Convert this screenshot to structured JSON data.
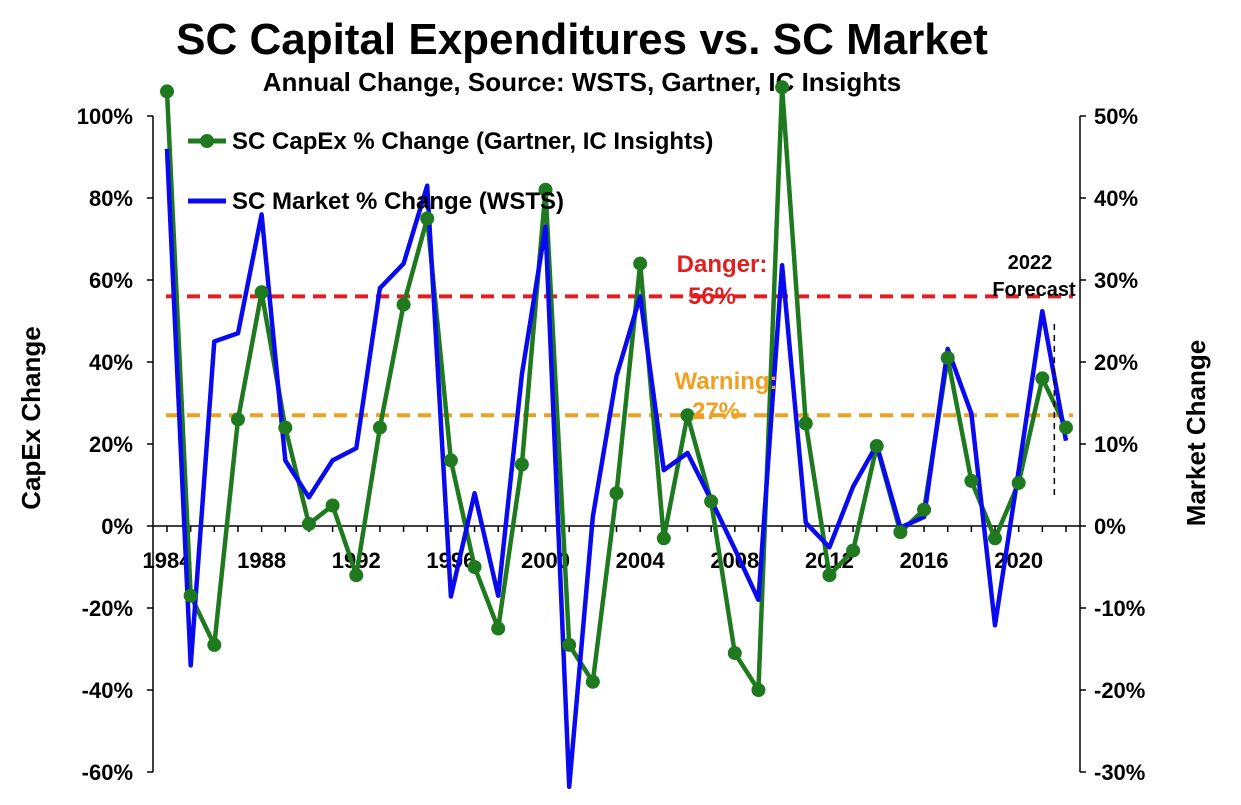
{
  "chart_data": {
    "type": "line",
    "title": "SC Capital Expenditures vs. SC Market",
    "subtitle": "Annual Change, Source: WSTS, Gartner, IC Insights",
    "ylabel": "CapEx Change",
    "y2label": "Market Change",
    "ylim": [
      -60,
      100
    ],
    "y2lim": [
      -30,
      50
    ],
    "yticks": [
      "-60%",
      "-40%",
      "-20%",
      "0%",
      "20%",
      "40%",
      "60%",
      "80%",
      "100%"
    ],
    "y2ticks": [
      "-30%",
      "-20%",
      "-10%",
      "0%",
      "10%",
      "20%",
      "30%",
      "40%",
      "50%"
    ],
    "xticks": [
      "1984",
      "1988",
      "1992",
      "1996",
      "2000",
      "2004",
      "2008",
      "2012",
      "2016",
      "2020"
    ],
    "x": [
      1984,
      1985,
      1986,
      1987,
      1988,
      1989,
      1990,
      1991,
      1992,
      1993,
      1994,
      1995,
      1996,
      1997,
      1998,
      1999,
      2000,
      2001,
      2002,
      2003,
      2004,
      2005,
      2006,
      2007,
      2008,
      2009,
      2010,
      2011,
      2012,
      2013,
      2014,
      2015,
      2016,
      2017,
      2018,
      2019,
      2020,
      2021,
      2022
    ],
    "series": [
      {
        "name": "SC CapEx % Change (Gartner, IC Insights)",
        "axis": "left",
        "color": "#1f7a1f",
        "markers": true,
        "values": [
          106,
          -17,
          -29,
          26,
          57,
          24,
          0.5,
          5,
          -12,
          24,
          54,
          75,
          16,
          -10,
          -25,
          15,
          82,
          -29,
          -38,
          8,
          64,
          -3,
          27,
          6,
          -31,
          -40,
          107,
          25,
          -12,
          -6,
          19.5,
          -1.5,
          4,
          41,
          11,
          -3,
          10.5,
          36,
          24
        ]
      },
      {
        "name": "SC Market % Change (WSTS)",
        "axis": "right",
        "color": "#0a0aee",
        "markers": false,
        "values": [
          46,
          -17,
          22.5,
          23.5,
          38,
          8,
          3.5,
          8,
          9.5,
          29,
          32,
          41.5,
          -8.6,
          4,
          -8.5,
          18.5,
          36.5,
          -31.8,
          1.1,
          18.3,
          28,
          6.8,
          8.9,
          3.2,
          -2.8,
          -9,
          31.8,
          0.4,
          -2.6,
          4.8,
          9.9,
          -0.2,
          1.1,
          21.6,
          13.7,
          -12.1,
          6.8,
          26.2,
          10.4
        ]
      }
    ],
    "thresholds": [
      {
        "label": "Danger:",
        "value_label": "56%",
        "value": 56,
        "color": "#e02020"
      },
      {
        "label": "Warning:",
        "value_label": "27%",
        "value": 27,
        "color": "#f0a020"
      }
    ],
    "forecast_annotation": {
      "line1": "2022",
      "line2": "Forecast"
    },
    "legend_position": "top-left"
  }
}
